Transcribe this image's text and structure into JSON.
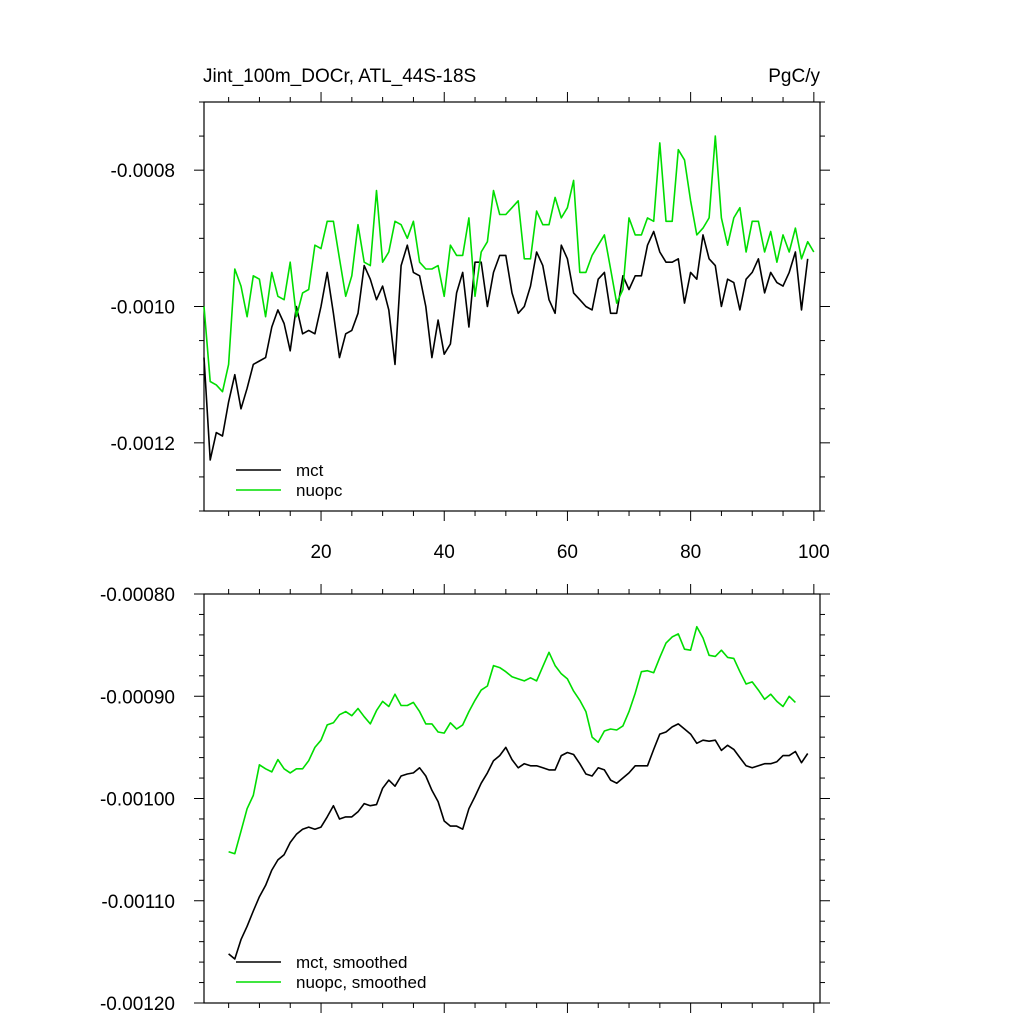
{
  "figure": {
    "title_left": "Jint_100m_DOCr, ATL_44S-18S",
    "title_right": "PgC/y"
  },
  "chart_data": [
    {
      "type": "line",
      "title": "Jint_100m_DOCr, ATL_44S-18S",
      "units": "PgC/y",
      "xlim": [
        1,
        101
      ],
      "ylim": [
        -0.0013,
        -0.0007
      ],
      "x_ticks": [
        20,
        40,
        60,
        80,
        100
      ],
      "x_tick_labels": [
        "20",
        "40",
        "60",
        "80",
        "100"
      ],
      "y_ticks": [
        -0.0008,
        -0.001,
        -0.0012
      ],
      "y_tick_labels": [
        "-0.0008",
        "-0.0010",
        "-0.0012"
      ],
      "legend_position": "bottom-left",
      "series": [
        {
          "name": "mct",
          "color": "#000000",
          "x_start": 1,
          "values": [
            -0.001075,
            -0.001225,
            -0.001185,
            -0.00119,
            -0.00114,
            -0.0011,
            -0.00115,
            -0.00112,
            -0.001085,
            -0.00108,
            -0.001075,
            -0.00103,
            -0.001005,
            -0.001025,
            -0.001065,
            -0.001,
            -0.00104,
            -0.001035,
            -0.00104,
            -0.001,
            -0.00095,
            -0.00101,
            -0.001075,
            -0.00104,
            -0.001035,
            -0.00101,
            -0.00094,
            -0.00096,
            -0.00099,
            -0.00097,
            -0.001005,
            -0.001085,
            -0.00094,
            -0.00091,
            -0.00095,
            -0.000955,
            -0.001,
            -0.001075,
            -0.00102,
            -0.00107,
            -0.001055,
            -0.00098,
            -0.00095,
            -0.00103,
            -0.000935,
            -0.000935,
            -0.001,
            -0.00095,
            -0.000925,
            -0.000925,
            -0.00098,
            -0.00101,
            -0.001,
            -0.00097,
            -0.00092,
            -0.00094,
            -0.00099,
            -0.00101,
            -0.00091,
            -0.00093,
            -0.00098,
            -0.00099,
            -0.001,
            -0.001005,
            -0.00096,
            -0.00095,
            -0.00101,
            -0.00101,
            -0.000955,
            -0.000975,
            -0.000955,
            -0.000955,
            -0.00091,
            -0.00089,
            -0.00092,
            -0.000935,
            -0.000935,
            -0.00093,
            -0.000995,
            -0.00095,
            -0.00096,
            -0.000895,
            -0.00093,
            -0.00094,
            -0.001,
            -0.00096,
            -0.000965,
            -0.001005,
            -0.00096,
            -0.00095,
            -0.00093,
            -0.00098,
            -0.00095,
            -0.000965,
            -0.00097,
            -0.00095,
            -0.00092,
            -0.001005,
            -0.00093
          ]
        },
        {
          "name": "nuopc",
          "color": "#00dd00",
          "x_start": 1,
          "values": [
            -0.001,
            -0.00111,
            -0.001115,
            -0.001125,
            -0.001085,
            -0.000945,
            -0.00097,
            -0.001015,
            -0.000955,
            -0.00096,
            -0.001015,
            -0.00095,
            -0.000985,
            -0.00099,
            -0.000935,
            -0.001015,
            -0.00098,
            -0.000975,
            -0.00091,
            -0.000915,
            -0.000875,
            -0.000875,
            -0.00093,
            -0.000985,
            -0.000955,
            -0.00088,
            -0.000935,
            -0.00094,
            -0.00083,
            -0.000935,
            -0.00092,
            -0.000875,
            -0.00088,
            -0.0009,
            -0.000875,
            -0.000935,
            -0.000945,
            -0.000945,
            -0.00094,
            -0.000985,
            -0.00091,
            -0.000925,
            -0.000925,
            -0.00087,
            -0.000985,
            -0.00092,
            -0.000905,
            -0.00083,
            -0.000865,
            -0.000865,
            -0.000855,
            -0.000845,
            -0.00093,
            -0.00093,
            -0.00086,
            -0.00088,
            -0.00088,
            -0.00084,
            -0.00087,
            -0.000855,
            -0.000815,
            -0.00095,
            -0.00095,
            -0.000925,
            -0.00091,
            -0.000895,
            -0.000945,
            -0.000995,
            -0.000975,
            -0.00087,
            -0.000895,
            -0.000895,
            -0.00087,
            -0.000875,
            -0.00076,
            -0.000875,
            -0.000875,
            -0.00077,
            -0.000785,
            -0.000845,
            -0.000895,
            -0.000885,
            -0.00087,
            -0.00075,
            -0.00087,
            -0.00091,
            -0.00087,
            -0.000855,
            -0.00092,
            -0.000875,
            -0.000875,
            -0.00092,
            -0.00089,
            -0.000935,
            -0.000895,
            -0.00092,
            -0.000885,
            -0.00093,
            -0.000905,
            -0.00092
          ]
        }
      ]
    },
    {
      "type": "line",
      "xlim": [
        1,
        101
      ],
      "ylim": [
        -0.0012,
        -0.0008
      ],
      "x_ticks": [
        20,
        40,
        60,
        80,
        100
      ],
      "y_ticks": [
        -0.0008,
        -0.0009,
        -0.001,
        -0.0011,
        -0.0012
      ],
      "y_tick_labels": [
        "-0.00080",
        "-0.00090",
        "-0.00100",
        "-0.00110",
        "-0.00120"
      ],
      "legend_position": "bottom-left",
      "series": [
        {
          "name": "mct, smoothed",
          "color": "#000000",
          "x_start": 5,
          "values": [
            -0.001152,
            -0.001157,
            -0.001138,
            -0.001125,
            -0.00111,
            -0.001096,
            -0.001085,
            -0.00107,
            -0.00106,
            -0.001055,
            -0.001043,
            -0.001035,
            -0.00103,
            -0.001028,
            -0.00103,
            -0.001028,
            -0.001018,
            -0.001007,
            -0.00102,
            -0.001018,
            -0.001018,
            -0.001013,
            -0.001005,
            -0.001007,
            -0.001006,
            -0.00099,
            -0.000982,
            -0.000988,
            -0.000978,
            -0.000976,
            -0.000975,
            -0.00097,
            -0.000978,
            -0.000992,
            -0.001003,
            -0.001022,
            -0.001027,
            -0.001027,
            -0.00103,
            -0.00101,
            -0.000998,
            -0.000985,
            -0.000975,
            -0.000963,
            -0.000958,
            -0.00095,
            -0.000962,
            -0.00097,
            -0.000966,
            -0.000968,
            -0.000968,
            -0.00097,
            -0.000972,
            -0.000972,
            -0.000958,
            -0.000955,
            -0.000957,
            -0.000966,
            -0.000976,
            -0.000978,
            -0.00097,
            -0.000972,
            -0.000982,
            -0.000985,
            -0.00098,
            -0.000975,
            -0.000968,
            -0.000968,
            -0.000968,
            -0.000952,
            -0.000937,
            -0.000935,
            -0.00093,
            -0.000927,
            -0.000932,
            -0.000937,
            -0.000946,
            -0.000943,
            -0.000944,
            -0.000943,
            -0.000953,
            -0.000948,
            -0.000952,
            -0.00096,
            -0.000968,
            -0.00097,
            -0.000968,
            -0.000966,
            -0.000966,
            -0.000964,
            -0.000958,
            -0.000958,
            -0.000954,
            -0.000965,
            -0.000956
          ]
        },
        {
          "name": "nuopc, smoothed",
          "color": "#00dd00",
          "x_start": 5,
          "values": [
            -0.001052,
            -0.001054,
            -0.001032,
            -0.00101,
            -0.000997,
            -0.000967,
            -0.000971,
            -0.000974,
            -0.000962,
            -0.000971,
            -0.000975,
            -0.000971,
            -0.000971,
            -0.000963,
            -0.00095,
            -0.000943,
            -0.000928,
            -0.000926,
            -0.000918,
            -0.000915,
            -0.000919,
            -0.000912,
            -0.00092,
            -0.000927,
            -0.000914,
            -0.000905,
            -0.00091,
            -0.000898,
            -0.000909,
            -0.000909,
            -0.000906,
            -0.000915,
            -0.000927,
            -0.000927,
            -0.000935,
            -0.000936,
            -0.000926,
            -0.000932,
            -0.000928,
            -0.000915,
            -0.000904,
            -0.000894,
            -0.00089,
            -0.00087,
            -0.000872,
            -0.000876,
            -0.000881,
            -0.000883,
            -0.000885,
            -0.000882,
            -0.000885,
            -0.000871,
            -0.000857,
            -0.00087,
            -0.000878,
            -0.000883,
            -0.000895,
            -0.000904,
            -0.000915,
            -0.00094,
            -0.000945,
            -0.000934,
            -0.000932,
            -0.000933,
            -0.000929,
            -0.000915,
            -0.000897,
            -0.000876,
            -0.000875,
            -0.000877,
            -0.000862,
            -0.000848,
            -0.000842,
            -0.000839,
            -0.000854,
            -0.000855,
            -0.000832,
            -0.000843,
            -0.00086,
            -0.000861,
            -0.000855,
            -0.000862,
            -0.000863,
            -0.000876,
            -0.000888,
            -0.000886,
            -0.000894,
            -0.000903,
            -0.000898,
            -0.000905,
            -0.00091,
            -0.0009,
            -0.000906
          ]
        }
      ]
    }
  ]
}
